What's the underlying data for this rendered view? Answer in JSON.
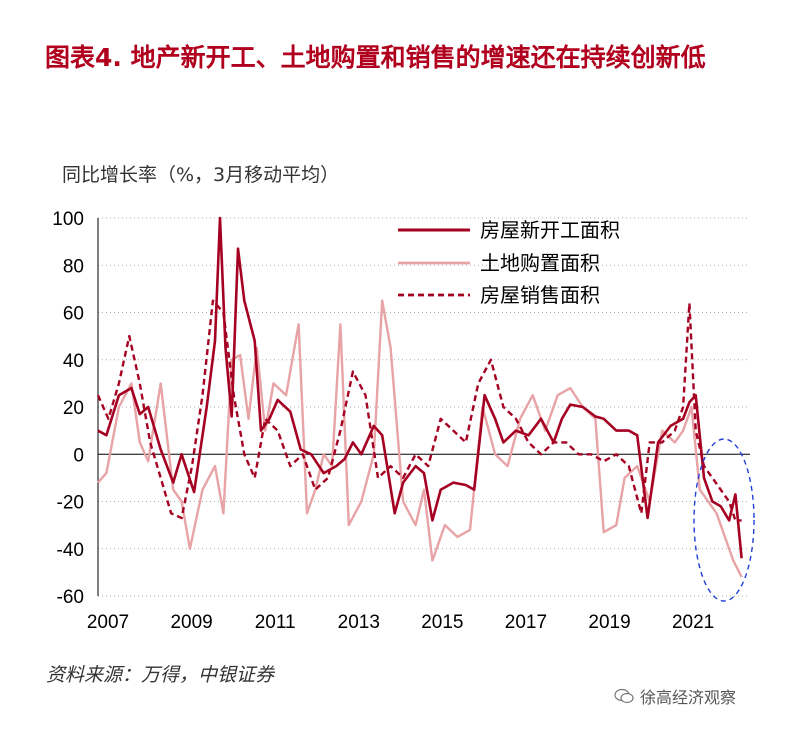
{
  "header": {
    "title": "图表4.  地产新开工、土地购置和销售的增速还在持续创新低"
  },
  "footer": {
    "source": "资料来源：万得，中银证券",
    "brand": "徐高经济观察"
  },
  "colors": {
    "new_starts": "#a50021",
    "land": "#e8a3a6",
    "sales": "#a50021",
    "highlight": "#1f3fd6",
    "title": "#b0001e"
  },
  "chart_data": {
    "type": "line",
    "title": "",
    "ylabel": "同比增长率（%，3月移动平均）",
    "ylim": [
      -60,
      100
    ],
    "yticks": [
      -60,
      -40,
      -20,
      0,
      20,
      40,
      60,
      80,
      100
    ],
    "xlim": [
      2007.0,
      2022.6
    ],
    "xticks": [
      "2007",
      "2009",
      "2011",
      "2013",
      "2015",
      "2017",
      "2019",
      "2021"
    ],
    "grid": "horizontal-dotted",
    "legend_position": "top-right",
    "annotation": "dashed blue ellipse highlighting 2021-2022 lows",
    "series": [
      {
        "name": "房屋新开工面积",
        "style": "solid-thick",
        "x": [
          2007.0,
          2007.2,
          2007.5,
          2007.8,
          2008.0,
          2008.2,
          2008.5,
          2008.8,
          2009.0,
          2009.3,
          2009.6,
          2009.8,
          2009.92,
          2010.05,
          2010.2,
          2010.35,
          2010.5,
          2010.75,
          2010.9,
          2011.1,
          2011.3,
          2011.6,
          2011.85,
          2012.1,
          2012.4,
          2012.7,
          2012.9,
          2013.1,
          2013.3,
          2013.6,
          2013.8,
          2014.1,
          2014.3,
          2014.6,
          2014.8,
          2015.0,
          2015.2,
          2015.5,
          2015.8,
          2016.0,
          2016.25,
          2016.5,
          2016.7,
          2017.0,
          2017.3,
          2017.6,
          2017.9,
          2018.1,
          2018.3,
          2018.6,
          2018.9,
          2019.1,
          2019.4,
          2019.7,
          2019.9,
          2020.15,
          2020.4,
          2020.7,
          2021.0,
          2021.15,
          2021.3,
          2021.5,
          2021.7,
          2021.9,
          2022.1,
          2022.25,
          2022.4
        ],
        "y": [
          10,
          8,
          25,
          28,
          17,
          20,
          2,
          -12,
          0,
          -16,
          20,
          48,
          100,
          45,
          16,
          87,
          65,
          48,
          10,
          15,
          23,
          18,
          2,
          0,
          -8,
          -5,
          -2,
          5,
          0,
          12,
          8,
          -25,
          -12,
          -5,
          -8,
          -28,
          -15,
          -12,
          -13,
          -15,
          25,
          15,
          5,
          10,
          8,
          15,
          5,
          15,
          21,
          20,
          16,
          15,
          10,
          10,
          8,
          -27,
          5,
          12,
          15,
          22,
          25,
          -10,
          -20,
          -22,
          -28,
          -17,
          -44
        ]
      },
      {
        "name": "土地购置面积",
        "style": "solid-light",
        "x": [
          2007.0,
          2007.2,
          2007.5,
          2007.8,
          2008.0,
          2008.2,
          2008.5,
          2008.8,
          2009.0,
          2009.2,
          2009.5,
          2009.8,
          2010.0,
          2010.2,
          2010.4,
          2010.6,
          2010.8,
          2011.0,
          2011.2,
          2011.5,
          2011.8,
          2012.0,
          2012.2,
          2012.4,
          2012.6,
          2012.8,
          2013.0,
          2013.3,
          2013.6,
          2013.8,
          2014.0,
          2014.3,
          2014.6,
          2014.8,
          2015.0,
          2015.3,
          2015.6,
          2015.9,
          2016.2,
          2016.5,
          2016.8,
          2017.1,
          2017.4,
          2017.7,
          2018.0,
          2018.3,
          2018.6,
          2018.9,
          2019.1,
          2019.4,
          2019.6,
          2019.9,
          2020.2,
          2020.5,
          2020.8,
          2021.0,
          2021.2,
          2021.4,
          2021.6,
          2021.8,
          2022.0,
          2022.2,
          2022.4
        ],
        "y": [
          -12,
          -8,
          20,
          30,
          5,
          -3,
          30,
          -15,
          -20,
          -40,
          -15,
          -5,
          -25,
          40,
          42,
          15,
          45,
          10,
          30,
          25,
          55,
          -25,
          -15,
          0,
          -5,
          55,
          -30,
          -20,
          0,
          65,
          45,
          -20,
          -30,
          -15,
          -45,
          -30,
          -35,
          -32,
          20,
          0,
          -5,
          15,
          25,
          10,
          25,
          28,
          20,
          15,
          -33,
          -30,
          -10,
          -5,
          -20,
          10,
          5,
          10,
          20,
          -15,
          -20,
          -25,
          -35,
          -45,
          -52
        ]
      },
      {
        "name": "房屋销售面积",
        "style": "dashed",
        "x": [
          2007.0,
          2007.25,
          2007.5,
          2007.75,
          2008.0,
          2008.25,
          2008.5,
          2008.75,
          2009.0,
          2009.25,
          2009.5,
          2009.75,
          2010.0,
          2010.25,
          2010.5,
          2010.75,
          2011.0,
          2011.3,
          2011.6,
          2011.9,
          2012.2,
          2012.5,
          2012.8,
          2013.1,
          2013.4,
          2013.7,
          2014.0,
          2014.3,
          2014.6,
          2014.9,
          2015.2,
          2015.5,
          2015.8,
          2016.1,
          2016.4,
          2016.7,
          2017.0,
          2017.3,
          2017.6,
          2017.9,
          2018.2,
          2018.5,
          2018.8,
          2019.1,
          2019.4,
          2019.7,
          2020.0,
          2020.2,
          2020.5,
          2020.8,
          2021.0,
          2021.15,
          2021.3,
          2021.5,
          2021.7,
          2021.9,
          2022.1,
          2022.25,
          2022.4
        ],
        "y": [
          25,
          15,
          30,
          50,
          30,
          5,
          -10,
          -25,
          -27,
          -5,
          25,
          65,
          60,
          25,
          0,
          -10,
          15,
          10,
          -5,
          0,
          -15,
          -10,
          10,
          35,
          25,
          -10,
          -5,
          -10,
          0,
          -5,
          15,
          10,
          5,
          30,
          40,
          20,
          15,
          5,
          0,
          5,
          5,
          0,
          0,
          -3,
          0,
          -5,
          -25,
          5,
          5,
          10,
          20,
          64,
          10,
          -5,
          -10,
          -15,
          -20,
          -28,
          -28
        ]
      }
    ]
  }
}
